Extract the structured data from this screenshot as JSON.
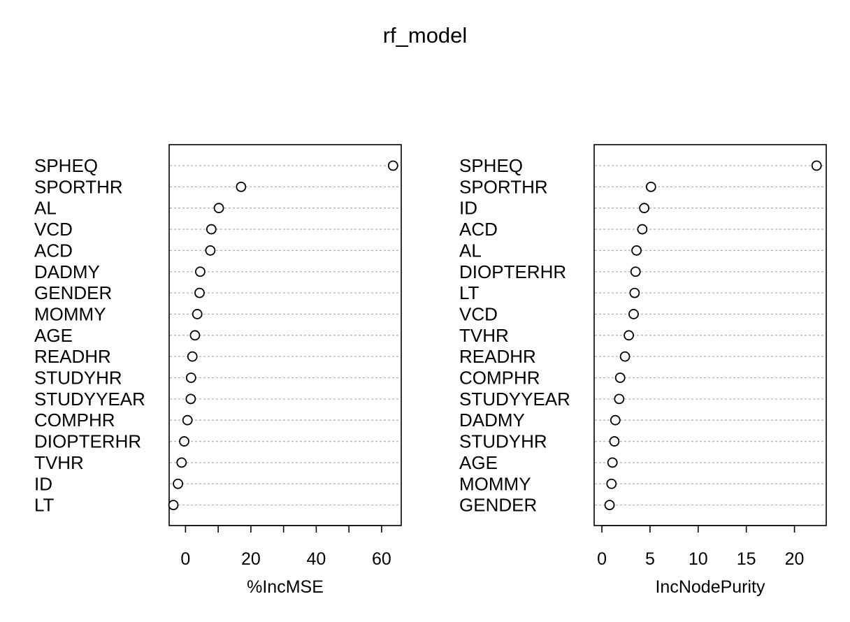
{
  "chart_data": [
    {
      "type": "dotchart",
      "title": "rf_model",
      "xlabel": "%IncMSE",
      "ylabel": "",
      "xlim": [
        -5,
        66
      ],
      "xticks": [
        0,
        20,
        40,
        60
      ],
      "minor_xticks": [
        10,
        30,
        50
      ],
      "grid": "dashed horizontal guide lines",
      "labels": [
        "SPHEQ",
        "SPORTHR",
        "AL",
        "VCD",
        "ACD",
        "DADMY",
        "GENDER",
        "MOMMY",
        "AGE",
        "READHR",
        "STUDYHR",
        "STUDYYEAR",
        "COMPHR",
        "DIOPTERHR",
        "TVHR",
        "ID",
        "LT"
      ],
      "values": [
        63.5,
        17.0,
        10.2,
        7.9,
        7.6,
        4.5,
        4.3,
        3.6,
        2.9,
        2.1,
        1.7,
        1.6,
        0.6,
        -0.4,
        -1.2,
        -2.3,
        -3.7
      ]
    },
    {
      "type": "dotchart",
      "title": "",
      "xlabel": "IncNodePurity",
      "ylabel": "",
      "xlim": [
        -0.8,
        23.3
      ],
      "xticks": [
        0,
        5,
        10,
        15,
        20
      ],
      "minor_xticks": [],
      "grid": "dashed horizontal guide lines",
      "labels": [
        "SPHEQ",
        "SPORTHR",
        "ID",
        "ACD",
        "AL",
        "DIOPTERHR",
        "LT",
        "VCD",
        "TVHR",
        "READHR",
        "COMPHR",
        "STUDYYEAR",
        "DADMY",
        "STUDYHR",
        "AGE",
        "MOMMY",
        "GENDER"
      ],
      "values": [
        22.3,
        5.1,
        4.4,
        4.2,
        3.6,
        3.5,
        3.4,
        3.3,
        2.8,
        2.4,
        1.9,
        1.8,
        1.4,
        1.3,
        1.1,
        1.0,
        0.8
      ]
    }
  ]
}
